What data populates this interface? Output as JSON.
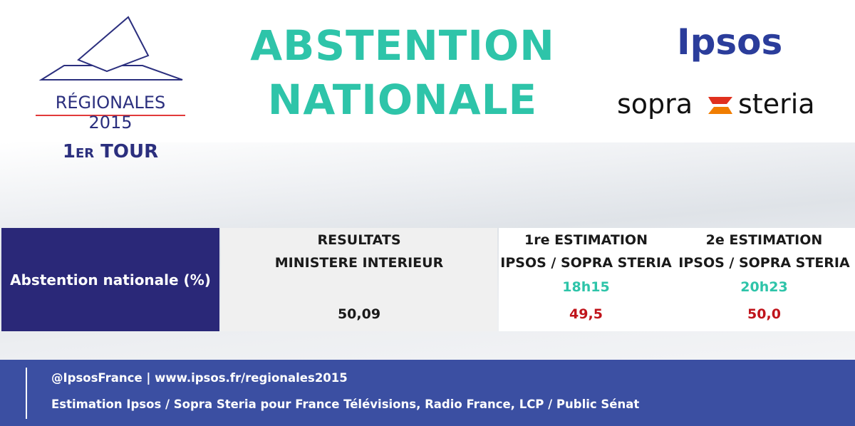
{
  "header": {
    "logo_label": "RÉGIONALES 2015",
    "round": "1er TOUR",
    "title": [
      "ABSTENTION",
      "NATIONALE"
    ],
    "partners": {
      "ipsos": "Ipsos",
      "sopra": "sopra",
      "steria": "steria"
    }
  },
  "table": {
    "row_label": "Abstention nationale (%)",
    "columns": [
      {
        "heading": [
          "RESULTATS",
          "MINISTERE INTERIEUR"
        ],
        "value": "50,09"
      },
      {
        "heading": [
          "1re ESTIMATION",
          "IPSOS / SOPRA STERIA"
        ],
        "time": "18h15",
        "value": "49,5"
      },
      {
        "heading": [
          "2e ESTIMATION",
          "IPSOS / SOPRA STERIA"
        ],
        "time": "20h23",
        "value": "50,0"
      }
    ]
  },
  "footer": {
    "lines": [
      "@IpsosFrance | www.ipsos.fr/regionales2015",
      "Estimation Ipsos / Sopra Steria pour France Télévisions, Radio France, LCP / Public Sénat"
    ]
  }
}
